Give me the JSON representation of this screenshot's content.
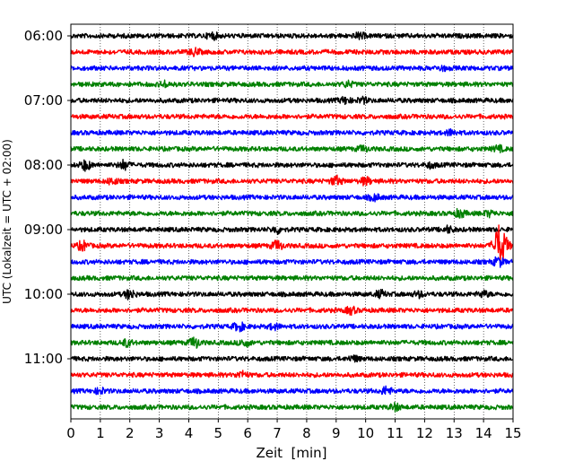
{
  "chart_data": {
    "type": "line",
    "title": "",
    "xlabel": "Zeit  [min]",
    "ylabel": "UTC (Lokalzeit = UTC + 02:00)",
    "xlim": [
      0,
      15
    ],
    "x_ticks": [
      0,
      1,
      2,
      3,
      4,
      5,
      6,
      7,
      8,
      9,
      10,
      11,
      12,
      13,
      14,
      15
    ],
    "y_tick_labels": [
      "06:00",
      "07:00",
      "08:00",
      "09:00",
      "10:00",
      "11:00"
    ],
    "grid": "vertical dotted at each minute",
    "trace_colors": [
      "#000000",
      "#ff0000",
      "#0000ff",
      "#008000"
    ],
    "trace_interval_minutes": 15,
    "traces": [
      {
        "start": "06:00",
        "color": "#000000",
        "bursts": [
          [
            4.8,
            1.0
          ],
          [
            9.8,
            0.8
          ]
        ]
      },
      {
        "start": "06:15",
        "color": "#ff0000",
        "bursts": [
          [
            4.2,
            1.0
          ]
        ]
      },
      {
        "start": "06:30",
        "color": "#0000ff",
        "bursts": [
          [
            12.6,
            0.6
          ]
        ]
      },
      {
        "start": "06:45",
        "color": "#008000",
        "bursts": [
          [
            3.2,
            0.8
          ],
          [
            9.4,
            0.8
          ]
        ]
      },
      {
        "start": "07:00",
        "color": "#000000",
        "bursts": [
          [
            9.3,
            0.9
          ],
          [
            9.9,
            0.8
          ]
        ]
      },
      {
        "start": "07:15",
        "color": "#ff0000",
        "bursts": []
      },
      {
        "start": "07:30",
        "color": "#0000ff",
        "bursts": [
          [
            12.9,
            0.8
          ]
        ]
      },
      {
        "start": "07:45",
        "color": "#008000",
        "bursts": [
          [
            9.9,
            0.8
          ],
          [
            14.5,
            0.8
          ]
        ]
      },
      {
        "start": "08:00",
        "color": "#000000",
        "bursts": [
          [
            0.5,
            1.5
          ],
          [
            1.8,
            1.4
          ],
          [
            12.2,
            0.7
          ]
        ]
      },
      {
        "start": "08:15",
        "color": "#ff0000",
        "bursts": [
          [
            1.4,
            0.9
          ],
          [
            9.0,
            1.4
          ],
          [
            10.0,
            1.1
          ]
        ]
      },
      {
        "start": "08:30",
        "color": "#0000ff",
        "bursts": [
          [
            10.3,
            0.9
          ]
        ]
      },
      {
        "start": "08:45",
        "color": "#008000",
        "bursts": [
          [
            13.2,
            1.2
          ],
          [
            14.2,
            0.8
          ]
        ]
      },
      {
        "start": "09:00",
        "color": "#000000",
        "bursts": [
          [
            7.0,
            1.0
          ],
          [
            12.8,
            0.9
          ]
        ]
      },
      {
        "start": "09:15",
        "color": "#ff0000",
        "bursts": [
          [
            0.4,
            1.4
          ],
          [
            7.0,
            1.5
          ],
          [
            14.5,
            6.0
          ],
          [
            14.7,
            2.5
          ]
        ]
      },
      {
        "start": "09:30",
        "color": "#0000ff",
        "bursts": [
          [
            14.5,
            1.4
          ]
        ]
      },
      {
        "start": "09:45",
        "color": "#008000",
        "bursts": []
      },
      {
        "start": "10:00",
        "color": "#000000",
        "bursts": [
          [
            2.0,
            1.4
          ],
          [
            10.5,
            1.0
          ],
          [
            11.8,
            0.8
          ],
          [
            14.0,
            0.9
          ]
        ]
      },
      {
        "start": "10:15",
        "color": "#ff0000",
        "bursts": [
          [
            9.5,
            1.0
          ]
        ]
      },
      {
        "start": "10:30",
        "color": "#0000ff",
        "bursts": [
          [
            5.7,
            1.3
          ],
          [
            6.9,
            0.8
          ]
        ]
      },
      {
        "start": "10:45",
        "color": "#008000",
        "bursts": [
          [
            1.9,
            1.0
          ],
          [
            4.2,
            1.6
          ],
          [
            5.9,
            1.1
          ]
        ]
      },
      {
        "start": "11:00",
        "color": "#000000",
        "bursts": [
          [
            9.6,
            0.8
          ]
        ]
      },
      {
        "start": "11:15",
        "color": "#ff0000",
        "bursts": [
          [
            5.8,
            1.0
          ]
        ]
      },
      {
        "start": "11:30",
        "color": "#0000ff",
        "bursts": [
          [
            10.7,
            1.2
          ],
          [
            1.0,
            0.8
          ]
        ]
      },
      {
        "start": "11:45",
        "color": "#008000",
        "bursts": [
          [
            11.0,
            1.0
          ]
        ]
      }
    ]
  }
}
